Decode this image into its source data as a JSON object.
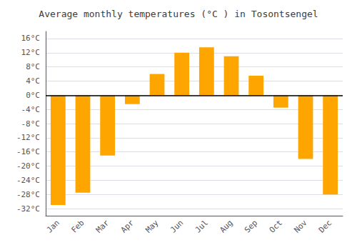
{
  "chart_data": {
    "type": "bar",
    "title": "Average monthly temperatures (°C ) in Tosontsengel",
    "categories": [
      "Jan",
      "Feb",
      "Mar",
      "Apr",
      "May",
      "Jun",
      "Jul",
      "Aug",
      "Sep",
      "Oct",
      "Nov",
      "Dec"
    ],
    "values": [
      -31,
      -27.5,
      -17,
      -2.5,
      6,
      12,
      13.5,
      11,
      5.5,
      -3.5,
      -18,
      -28
    ],
    "color": "#FFA500",
    "ylim": [
      -34,
      18
    ],
    "yticks": [
      {
        "value": -32,
        "label": "-32°C"
      },
      {
        "value": -28,
        "label": "-28°C"
      },
      {
        "value": -24,
        "label": "-24°C"
      },
      {
        "value": -20,
        "label": "-20°C"
      },
      {
        "value": -16,
        "label": "-16°C"
      },
      {
        "value": -12,
        "label": "-12°C"
      },
      {
        "value": -8,
        "label": "-8°C"
      },
      {
        "value": -4,
        "label": "-4°C"
      },
      {
        "value": 0,
        "label": "0°C"
      },
      {
        "value": 4,
        "label": "4°C"
      },
      {
        "value": 8,
        "label": "8°C"
      },
      {
        "value": 12,
        "label": "12°C"
      },
      {
        "value": 16,
        "label": "16°C"
      }
    ],
    "grid": true
  }
}
